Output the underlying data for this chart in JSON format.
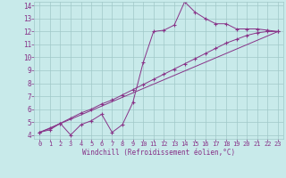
{
  "xlabel": "Windchill (Refroidissement éolien,°C)",
  "background_color": "#c8eaea",
  "grid_color": "#a0c8c8",
  "line_color": "#883388",
  "xmin": 0,
  "xmax": 23,
  "ymin": 4,
  "ymax": 14,
  "series1_x": [
    0,
    1,
    2,
    3,
    4,
    5,
    6,
    7,
    8,
    9,
    10,
    11,
    12,
    13,
    14,
    15,
    16,
    17,
    18,
    19,
    20,
    21,
    22,
    23
  ],
  "series1_y": [
    4.2,
    4.4,
    4.9,
    4.0,
    4.8,
    5.1,
    5.6,
    4.2,
    4.8,
    6.5,
    9.6,
    12.0,
    12.1,
    12.5,
    14.3,
    13.5,
    13.0,
    12.6,
    12.6,
    12.2,
    12.2,
    12.2,
    12.1,
    12.0
  ],
  "series2_x": [
    0,
    23
  ],
  "series2_y": [
    4.2,
    12.0
  ],
  "series3_x": [
    0,
    1,
    2,
    3,
    4,
    5,
    6,
    7,
    8,
    9,
    10,
    11,
    12,
    13,
    14,
    15,
    16,
    17,
    18,
    19,
    20,
    21,
    22,
    23
  ],
  "series3_y": [
    4.2,
    4.5,
    4.9,
    5.3,
    5.7,
    6.0,
    6.4,
    6.7,
    7.1,
    7.5,
    7.9,
    8.3,
    8.7,
    9.1,
    9.5,
    9.9,
    10.3,
    10.7,
    11.1,
    11.4,
    11.7,
    11.9,
    12.0,
    12.0
  ]
}
